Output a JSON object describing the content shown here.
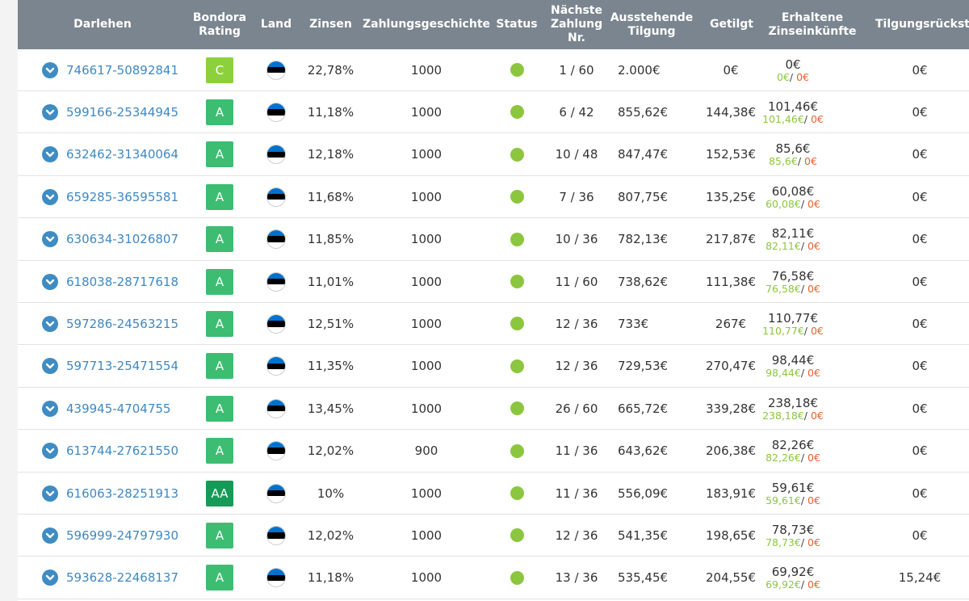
{
  "header": {
    "columns": [
      "Darlehen",
      "Bondora\nRating",
      "Land",
      "Zinsen",
      "Zahlungsgeschichte",
      "Status",
      "Nächste\nZahlung\nNr.",
      "Ausstehende\nTilgung",
      "Getilgt",
      "Erhaltene\nZinseinkünfte",
      "Tilgungsrückst"
    ]
  },
  "colors": {
    "header_bg": "#7a858f",
    "link": "#3f88c2",
    "status_ok": "#8cc63f",
    "positive": "#8cc63f",
    "negative": "#e8622c",
    "rating_C": "#8cd13b",
    "rating_A": "#3dbd72",
    "rating_AA": "#159a57"
  },
  "icons": {
    "expand": "chevron-down-circle-icon",
    "country": "estonia-flag-icon",
    "status": "status-dot-icon"
  },
  "flag_colors": [
    "#0072ce",
    "#000000",
    "#ffffff"
  ],
  "rows": [
    {
      "id": "746617-50892841",
      "rating": "C",
      "interest": "22,78%",
      "history": "1000",
      "next": "1 / 60",
      "outstanding": "2.000€",
      "repaid": "0€",
      "received": "0€",
      "received_pos": "0€",
      "received_neg": "0€",
      "arrears": "0€"
    },
    {
      "id": "599166-25344945",
      "rating": "A",
      "interest": "11,18%",
      "history": "1000",
      "next": "6 / 42",
      "outstanding": "855,62€",
      "repaid": "144,38€",
      "received": "101,46€",
      "received_pos": "101,46€",
      "received_neg": "0€",
      "arrears": "0€"
    },
    {
      "id": "632462-31340064",
      "rating": "A",
      "interest": "12,18%",
      "history": "1000",
      "next": "10 / 48",
      "outstanding": "847,47€",
      "repaid": "152,53€",
      "received": "85,6€",
      "received_pos": "85,6€",
      "received_neg": "0€",
      "arrears": "0€"
    },
    {
      "id": "659285-36595581",
      "rating": "A",
      "interest": "11,68%",
      "history": "1000",
      "next": "7 / 36",
      "outstanding": "807,75€",
      "repaid": "135,25€",
      "received": "60,08€",
      "received_pos": "60,08€",
      "received_neg": "0€",
      "arrears": "0€"
    },
    {
      "id": "630634-31026807",
      "rating": "A",
      "interest": "11,85%",
      "history": "1000",
      "next": "10 / 36",
      "outstanding": "782,13€",
      "repaid": "217,87€",
      "received": "82,11€",
      "received_pos": "82,11€",
      "received_neg": "0€",
      "arrears": "0€"
    },
    {
      "id": "618038-28717618",
      "rating": "A",
      "interest": "11,01%",
      "history": "1000",
      "next": "11 / 60",
      "outstanding": "738,62€",
      "repaid": "111,38€",
      "received": "76,58€",
      "received_pos": "76,58€",
      "received_neg": "0€",
      "arrears": "0€"
    },
    {
      "id": "597286-24563215",
      "rating": "A",
      "interest": "12,51%",
      "history": "1000",
      "next": "12 / 36",
      "outstanding": "733€",
      "repaid": "267€",
      "received": "110,77€",
      "received_pos": "110,77€",
      "received_neg": "0€",
      "arrears": "0€"
    },
    {
      "id": "597713-25471554",
      "rating": "A",
      "interest": "11,35%",
      "history": "1000",
      "next": "12 / 36",
      "outstanding": "729,53€",
      "repaid": "270,47€",
      "received": "98,44€",
      "received_pos": "98,44€",
      "received_neg": "0€",
      "arrears": "0€"
    },
    {
      "id": "439945-4704755",
      "rating": "A",
      "interest": "13,45%",
      "history": "1000",
      "next": "26 / 60",
      "outstanding": "665,72€",
      "repaid": "339,28€",
      "received": "238,18€",
      "received_pos": "238,18€",
      "received_neg": "0€",
      "arrears": "0€"
    },
    {
      "id": "613744-27621550",
      "rating": "A",
      "interest": "12,02%",
      "history": "900",
      "next": "11 / 36",
      "outstanding": "643,62€",
      "repaid": "206,38€",
      "received": "82,26€",
      "received_pos": "82,26€",
      "received_neg": "0€",
      "arrears": "0€"
    },
    {
      "id": "616063-28251913",
      "rating": "AA",
      "interest": "10%",
      "history": "1000",
      "next": "11 / 36",
      "outstanding": "556,09€",
      "repaid": "183,91€",
      "received": "59,61€",
      "received_pos": "59,61€",
      "received_neg": "0€",
      "arrears": "0€"
    },
    {
      "id": "596999-24797930",
      "rating": "A",
      "interest": "12,02%",
      "history": "1000",
      "next": "12 / 36",
      "outstanding": "541,35€",
      "repaid": "198,65€",
      "received": "78,73€",
      "received_pos": "78,73€",
      "received_neg": "0€",
      "arrears": "0€"
    },
    {
      "id": "593628-22468137",
      "rating": "A",
      "interest": "11,18%",
      "history": "1000",
      "next": "13 / 36",
      "outstanding": "535,45€",
      "repaid": "204,55€",
      "received": "69,92€",
      "received_pos": "69,92€",
      "received_neg": "0€",
      "arrears": "15,24€"
    }
  ]
}
